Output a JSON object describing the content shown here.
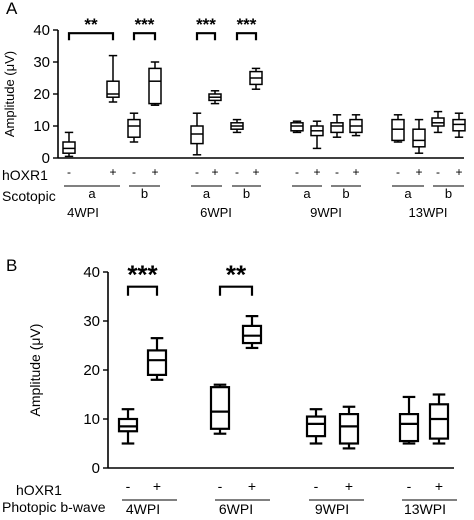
{
  "chart_data": [
    {
      "type": "box",
      "panel_label": "A",
      "ylabel": "Amplitude (μV)",
      "ylim": [
        0,
        40
      ],
      "yticks": [
        "0",
        "10",
        "20",
        "30",
        "40"
      ],
      "row_labels": [
        "hOXR1",
        "Scotopic"
      ],
      "groups": [
        {
          "label": "4WPI",
          "subgroups": [
            "a",
            "b"
          ]
        },
        {
          "label": "6WPI",
          "subgroups": [
            "a",
            "b"
          ]
        },
        {
          "label": "9WPI",
          "subgroups": [
            "a",
            "b"
          ]
        },
        {
          "label": "13WPI",
          "subgroups": [
            "a",
            "b"
          ]
        }
      ],
      "boxes": [
        {
          "group": 0,
          "sub": "a",
          "treat": "-",
          "min": 0.5,
          "q1": 1.5,
          "median": 3,
          "q3": 5,
          "max": 8
        },
        {
          "group": 0,
          "sub": "a",
          "treat": "+",
          "min": 17.5,
          "q1": 19,
          "median": 20,
          "q3": 24,
          "max": 32
        },
        {
          "group": 0,
          "sub": "b",
          "treat": "-",
          "min": 5,
          "q1": 6.5,
          "median": 10,
          "q3": 12,
          "max": 14
        },
        {
          "group": 0,
          "sub": "b",
          "treat": "+",
          "min": 16.5,
          "q1": 17,
          "median": 24,
          "q3": 28,
          "max": 30
        },
        {
          "group": 1,
          "sub": "a",
          "treat": "-",
          "min": 1,
          "q1": 4.5,
          "median": 7.5,
          "q3": 10,
          "max": 14
        },
        {
          "group": 1,
          "sub": "a",
          "treat": "+",
          "min": 17,
          "q1": 18,
          "median": 19,
          "q3": 20,
          "max": 21
        },
        {
          "group": 1,
          "sub": "b",
          "treat": "-",
          "min": 8,
          "q1": 9,
          "median": 10,
          "q3": 11,
          "max": 12
        },
        {
          "group": 1,
          "sub": "b",
          "treat": "+",
          "min": 21.5,
          "q1": 23,
          "median": 25,
          "q3": 27,
          "max": 28
        },
        {
          "group": 2,
          "sub": "a",
          "treat": "-",
          "min": 8,
          "q1": 8.5,
          "median": 10,
          "q3": 11,
          "max": 11.5
        },
        {
          "group": 2,
          "sub": "a",
          "treat": "+",
          "min": 3,
          "q1": 7,
          "median": 8.5,
          "q3": 10,
          "max": 11.5
        },
        {
          "group": 2,
          "sub": "b",
          "treat": "-",
          "min": 6.5,
          "q1": 8,
          "median": 10,
          "q3": 11,
          "max": 13.5
        },
        {
          "group": 2,
          "sub": "b",
          "treat": "+",
          "min": 7,
          "q1": 8,
          "median": 10,
          "q3": 12,
          "max": 13.5
        },
        {
          "group": 3,
          "sub": "a",
          "treat": "-",
          "min": 5,
          "q1": 5.5,
          "median": 9,
          "q3": 12,
          "max": 13.5
        },
        {
          "group": 3,
          "sub": "a",
          "treat": "+",
          "min": 1.5,
          "q1": 3.5,
          "median": 5.5,
          "q3": 9,
          "max": 12
        },
        {
          "group": 3,
          "sub": "b",
          "treat": "-",
          "min": 8,
          "q1": 10,
          "median": 11,
          "q3": 12.5,
          "max": 14.5
        },
        {
          "group": 3,
          "sub": "b",
          "treat": "+",
          "min": 6.5,
          "q1": 8.5,
          "median": 10.5,
          "q3": 12,
          "max": 14
        }
      ],
      "significance": [
        {
          "group": 0,
          "sub": "a",
          "label": "**",
          "y": 39
        },
        {
          "group": 0,
          "sub": "b",
          "label": "***",
          "y": 39
        },
        {
          "group": 1,
          "sub": "a",
          "label": "***",
          "y": 39
        },
        {
          "group": 1,
          "sub": "b",
          "label": "***",
          "y": 39
        }
      ]
    },
    {
      "type": "box",
      "panel_label": "B",
      "ylabel": "Amplitude (μV)",
      "ylim": [
        0,
        40
      ],
      "yticks": [
        "0",
        "10",
        "20",
        "30",
        "40"
      ],
      "row_labels": [
        "hOXR1",
        "Photopic b-wave"
      ],
      "groups": [
        {
          "label": "4WPI"
        },
        {
          "label": "6WPI"
        },
        {
          "label": "9WPI"
        },
        {
          "label": "13WPI"
        }
      ],
      "boxes": [
        {
          "group": 0,
          "treat": "-",
          "min": 5,
          "q1": 7.5,
          "median": 8.5,
          "q3": 10,
          "max": 12
        },
        {
          "group": 0,
          "treat": "+",
          "min": 18,
          "q1": 19,
          "median": 22,
          "q3": 24,
          "max": 26.5
        },
        {
          "group": 1,
          "treat": "-",
          "min": 7,
          "q1": 8,
          "median": 11.5,
          "q3": 16.5,
          "max": 17
        },
        {
          "group": 1,
          "treat": "+",
          "min": 24.5,
          "q1": 25.5,
          "median": 27,
          "q3": 29,
          "max": 31
        },
        {
          "group": 2,
          "treat": "-",
          "min": 5,
          "q1": 6.5,
          "median": 9,
          "q3": 10.5,
          "max": 12
        },
        {
          "group": 2,
          "treat": "+",
          "min": 4,
          "q1": 5,
          "median": 8.5,
          "q3": 11,
          "max": 12.5
        },
        {
          "group": 3,
          "treat": "-",
          "min": 5,
          "q1": 5.5,
          "median": 9,
          "q3": 11,
          "max": 14.5
        },
        {
          "group": 3,
          "treat": "+",
          "min": 5,
          "q1": 6,
          "median": 10,
          "q3": 13,
          "max": 15
        }
      ],
      "significance": [
        {
          "group": 0,
          "label": "***",
          "y": 37
        },
        {
          "group": 1,
          "label": "**",
          "y": 37
        }
      ]
    }
  ]
}
